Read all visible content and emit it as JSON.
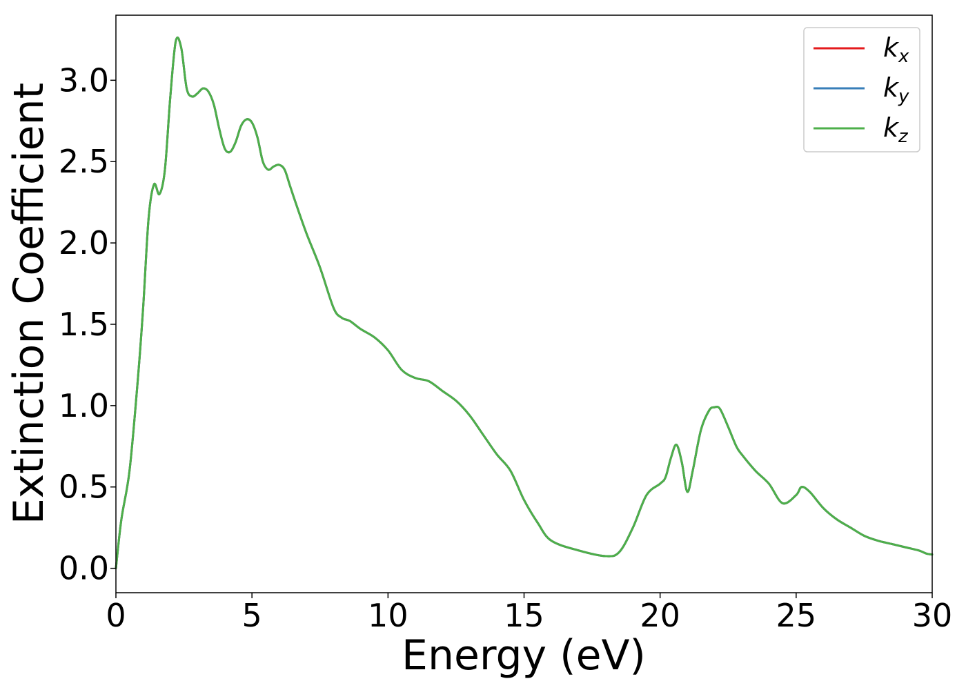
{
  "chart_data": {
    "type": "line",
    "title": "",
    "xlabel": "Energy (eV)",
    "ylabel": "Extinction Coefficient",
    "xlim": [
      0,
      30
    ],
    "ylim": [
      -0.15,
      3.4
    ],
    "x_ticks": [
      0,
      5,
      10,
      15,
      20,
      25,
      30
    ],
    "x_tick_labels": [
      "0",
      "5",
      "10",
      "15",
      "20",
      "25",
      "30"
    ],
    "y_ticks": [
      0.0,
      0.5,
      1.0,
      1.5,
      2.0,
      2.5,
      3.0
    ],
    "y_tick_labels": [
      "0.0",
      "0.5",
      "1.0",
      "1.5",
      "2.0",
      "2.5",
      "3.0"
    ],
    "grid": false,
    "legend_position": "top-right",
    "series": [
      {
        "name": "k",
        "sub": "x",
        "color": "#e41a1c",
        "x": [
          0,
          0.2,
          0.5,
          0.8,
          1.0,
          1.2,
          1.4,
          1.6,
          1.8,
          2.0,
          2.2,
          2.4,
          2.6,
          2.8,
          3.0,
          3.2,
          3.4,
          3.6,
          3.8,
          4.0,
          4.2,
          4.4,
          4.6,
          4.8,
          5.0,
          5.2,
          5.4,
          5.6,
          5.8,
          6.0,
          6.2,
          6.4,
          6.6,
          7.0,
          7.5,
          8.0,
          8.3,
          8.6,
          9.0,
          9.5,
          10.0,
          10.5,
          11.0,
          11.5,
          12.0,
          12.5,
          13.0,
          13.5,
          14.0,
          14.5,
          15.0,
          15.5,
          16.0,
          17.0,
          18.0,
          18.5,
          19.0,
          19.5,
          20.0,
          20.2,
          20.4,
          20.6,
          20.8,
          21.0,
          21.2,
          21.5,
          21.8,
          22.0,
          22.2,
          22.5,
          22.8,
          23.0,
          23.5,
          24.0,
          24.5,
          25.0,
          25.2,
          25.5,
          26.0,
          26.5,
          27.0,
          27.5,
          28.0,
          28.5,
          29.0,
          29.5,
          29.8,
          30.0
        ],
        "y": [
          0.0,
          0.3,
          0.6,
          1.15,
          1.6,
          2.15,
          2.36,
          2.3,
          2.45,
          2.9,
          3.24,
          3.2,
          2.95,
          2.9,
          2.92,
          2.95,
          2.93,
          2.85,
          2.7,
          2.58,
          2.56,
          2.62,
          2.72,
          2.76,
          2.74,
          2.65,
          2.5,
          2.45,
          2.47,
          2.48,
          2.45,
          2.35,
          2.25,
          2.06,
          1.85,
          1.6,
          1.54,
          1.52,
          1.47,
          1.42,
          1.34,
          1.22,
          1.17,
          1.15,
          1.09,
          1.03,
          0.94,
          0.82,
          0.7,
          0.6,
          0.42,
          0.28,
          0.17,
          0.11,
          0.075,
          0.1,
          0.25,
          0.45,
          0.52,
          0.56,
          0.68,
          0.76,
          0.65,
          0.47,
          0.6,
          0.85,
          0.97,
          0.99,
          0.98,
          0.87,
          0.75,
          0.7,
          0.6,
          0.52,
          0.4,
          0.45,
          0.5,
          0.47,
          0.37,
          0.3,
          0.25,
          0.2,
          0.17,
          0.15,
          0.13,
          0.11,
          0.09,
          0.085
        ]
      },
      {
        "name": "k",
        "sub": "y",
        "color": "#377eb8",
        "x": [
          0,
          0.2,
          0.5,
          0.8,
          1.0,
          1.2,
          1.4,
          1.6,
          1.8,
          2.0,
          2.2,
          2.4,
          2.6,
          2.8,
          3.0,
          3.2,
          3.4,
          3.6,
          3.8,
          4.0,
          4.2,
          4.4,
          4.6,
          4.8,
          5.0,
          5.2,
          5.4,
          5.6,
          5.8,
          6.0,
          6.2,
          6.4,
          6.6,
          7.0,
          7.5,
          8.0,
          8.3,
          8.6,
          9.0,
          9.5,
          10.0,
          10.5,
          11.0,
          11.5,
          12.0,
          12.5,
          13.0,
          13.5,
          14.0,
          14.5,
          15.0,
          15.5,
          16.0,
          17.0,
          18.0,
          18.5,
          19.0,
          19.5,
          20.0,
          20.2,
          20.4,
          20.6,
          20.8,
          21.0,
          21.2,
          21.5,
          21.8,
          22.0,
          22.2,
          22.5,
          22.8,
          23.0,
          23.5,
          24.0,
          24.5,
          25.0,
          25.2,
          25.5,
          26.0,
          26.5,
          27.0,
          27.5,
          28.0,
          28.5,
          29.0,
          29.5,
          29.8,
          30.0
        ],
        "y": [
          0.0,
          0.3,
          0.6,
          1.15,
          1.6,
          2.15,
          2.36,
          2.3,
          2.45,
          2.9,
          3.24,
          3.2,
          2.95,
          2.9,
          2.92,
          2.95,
          2.93,
          2.85,
          2.7,
          2.58,
          2.56,
          2.62,
          2.72,
          2.76,
          2.74,
          2.65,
          2.5,
          2.45,
          2.47,
          2.48,
          2.45,
          2.35,
          2.25,
          2.06,
          1.85,
          1.6,
          1.54,
          1.52,
          1.47,
          1.42,
          1.34,
          1.22,
          1.17,
          1.15,
          1.09,
          1.03,
          0.94,
          0.82,
          0.7,
          0.6,
          0.42,
          0.28,
          0.17,
          0.11,
          0.075,
          0.1,
          0.25,
          0.45,
          0.52,
          0.56,
          0.68,
          0.76,
          0.65,
          0.47,
          0.6,
          0.85,
          0.97,
          0.99,
          0.98,
          0.87,
          0.75,
          0.7,
          0.6,
          0.52,
          0.4,
          0.45,
          0.5,
          0.47,
          0.37,
          0.3,
          0.25,
          0.2,
          0.17,
          0.15,
          0.13,
          0.11,
          0.09,
          0.085
        ]
      },
      {
        "name": "k",
        "sub": "z",
        "color": "#4daf4a",
        "x": [
          0,
          0.2,
          0.5,
          0.8,
          1.0,
          1.2,
          1.4,
          1.6,
          1.8,
          2.0,
          2.2,
          2.4,
          2.6,
          2.8,
          3.0,
          3.2,
          3.4,
          3.6,
          3.8,
          4.0,
          4.2,
          4.4,
          4.6,
          4.8,
          5.0,
          5.2,
          5.4,
          5.6,
          5.8,
          6.0,
          6.2,
          6.4,
          6.6,
          7.0,
          7.5,
          8.0,
          8.3,
          8.6,
          9.0,
          9.5,
          10.0,
          10.5,
          11.0,
          11.5,
          12.0,
          12.5,
          13.0,
          13.5,
          14.0,
          14.5,
          15.0,
          15.5,
          16.0,
          17.0,
          18.0,
          18.5,
          19.0,
          19.5,
          20.0,
          20.2,
          20.4,
          20.6,
          20.8,
          21.0,
          21.2,
          21.5,
          21.8,
          22.0,
          22.2,
          22.5,
          22.8,
          23.0,
          23.5,
          24.0,
          24.5,
          25.0,
          25.2,
          25.5,
          26.0,
          26.5,
          27.0,
          27.5,
          28.0,
          28.5,
          29.0,
          29.5,
          29.8,
          30.0
        ],
        "y": [
          0.0,
          0.3,
          0.6,
          1.15,
          1.6,
          2.15,
          2.36,
          2.3,
          2.45,
          2.9,
          3.24,
          3.2,
          2.95,
          2.9,
          2.92,
          2.95,
          2.93,
          2.85,
          2.7,
          2.58,
          2.56,
          2.62,
          2.72,
          2.76,
          2.74,
          2.65,
          2.5,
          2.45,
          2.47,
          2.48,
          2.45,
          2.35,
          2.25,
          2.06,
          1.85,
          1.6,
          1.54,
          1.52,
          1.47,
          1.42,
          1.34,
          1.22,
          1.17,
          1.15,
          1.09,
          1.03,
          0.94,
          0.82,
          0.7,
          0.6,
          0.42,
          0.28,
          0.17,
          0.11,
          0.075,
          0.1,
          0.25,
          0.45,
          0.52,
          0.56,
          0.68,
          0.76,
          0.65,
          0.47,
          0.6,
          0.85,
          0.97,
          0.99,
          0.98,
          0.87,
          0.75,
          0.7,
          0.6,
          0.52,
          0.4,
          0.45,
          0.5,
          0.47,
          0.37,
          0.3,
          0.25,
          0.2,
          0.17,
          0.15,
          0.13,
          0.11,
          0.09,
          0.085
        ]
      }
    ]
  }
}
